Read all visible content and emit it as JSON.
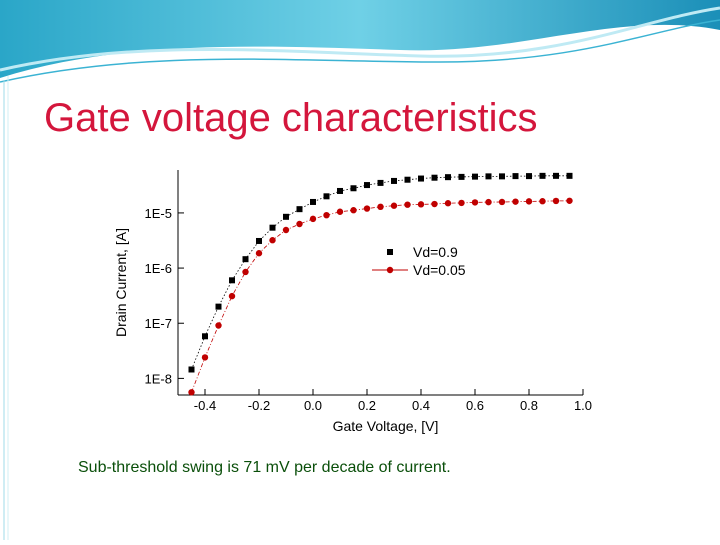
{
  "slide_title": "Gate voltage characteristics",
  "caption": "Sub-threshold swing is 71 mV per decade of current.",
  "chart_data": {
    "type": "scatter",
    "xlabel": "Gate Voltage, [V]",
    "ylabel": "Drain Current, [A]",
    "yscale": "log",
    "xlim": [
      -0.5,
      1.0
    ],
    "ylim": [
      5e-09,
      6e-05
    ],
    "xticks": [
      -0.4,
      -0.2,
      {
        "value": 0,
        "label": "0.0"
      },
      0.2,
      0.4,
      0.6,
      0.8,
      {
        "value": 1,
        "label": "1.0"
      }
    ],
    "yticks": [
      {
        "value": 1e-08,
        "label": "1E-8"
      },
      {
        "value": 1e-07,
        "label": "1E-7"
      },
      {
        "value": 1e-06,
        "label": "1E-6"
      },
      {
        "value": 1e-05,
        "label": "1E-5"
      }
    ],
    "x": [
      -0.45,
      -0.4,
      -0.35,
      -0.3,
      -0.25,
      -0.2,
      -0.15,
      -0.1,
      -0.05,
      0,
      0.05,
      0.1,
      0.15,
      0.2,
      0.25,
      0.3,
      0.35,
      0.4,
      0.45,
      0.5,
      0.55,
      0.6,
      0.65,
      0.7,
      0.75,
      0.8,
      0.85,
      0.9,
      0.95
    ],
    "series": [
      {
        "name": "Vd=0.9",
        "color": "#000000",
        "marker": "square",
        "values": [
          1.45e-08,
          5.8e-08,
          2e-07,
          6e-07,
          1.45e-06,
          3.1e-06,
          5.4e-06,
          8.5e-06,
          1.17e-05,
          1.58e-05,
          2e-05,
          2.5e-05,
          2.8e-05,
          3.2e-05,
          3.5e-05,
          3.8e-05,
          4e-05,
          4.2e-05,
          4.35e-05,
          4.45e-05,
          4.5e-05,
          4.55e-05,
          4.6e-05,
          4.6e-05,
          4.65e-05,
          4.65e-05,
          4.7e-05,
          4.7e-05,
          4.7e-05
        ]
      },
      {
        "name": "Vd=0.05",
        "color": "#c00000",
        "marker": "circle",
        "values": [
          5.6e-09,
          2.4e-08,
          9.1e-08,
          3.1e-07,
          8.5e-07,
          1.86e-06,
          3.2e-06,
          4.9e-06,
          6.3e-06,
          7.8e-06,
          9.1e-06,
          1.05e-05,
          1.12e-05,
          1.2e-05,
          1.29e-05,
          1.35e-05,
          1.41e-05,
          1.43e-05,
          1.45e-05,
          1.5e-05,
          1.52e-05,
          1.55e-05,
          1.57e-05,
          1.58e-05,
          1.6e-05,
          1.62e-05,
          1.63e-05,
          1.65e-05,
          1.66e-05
        ]
      }
    ]
  }
}
